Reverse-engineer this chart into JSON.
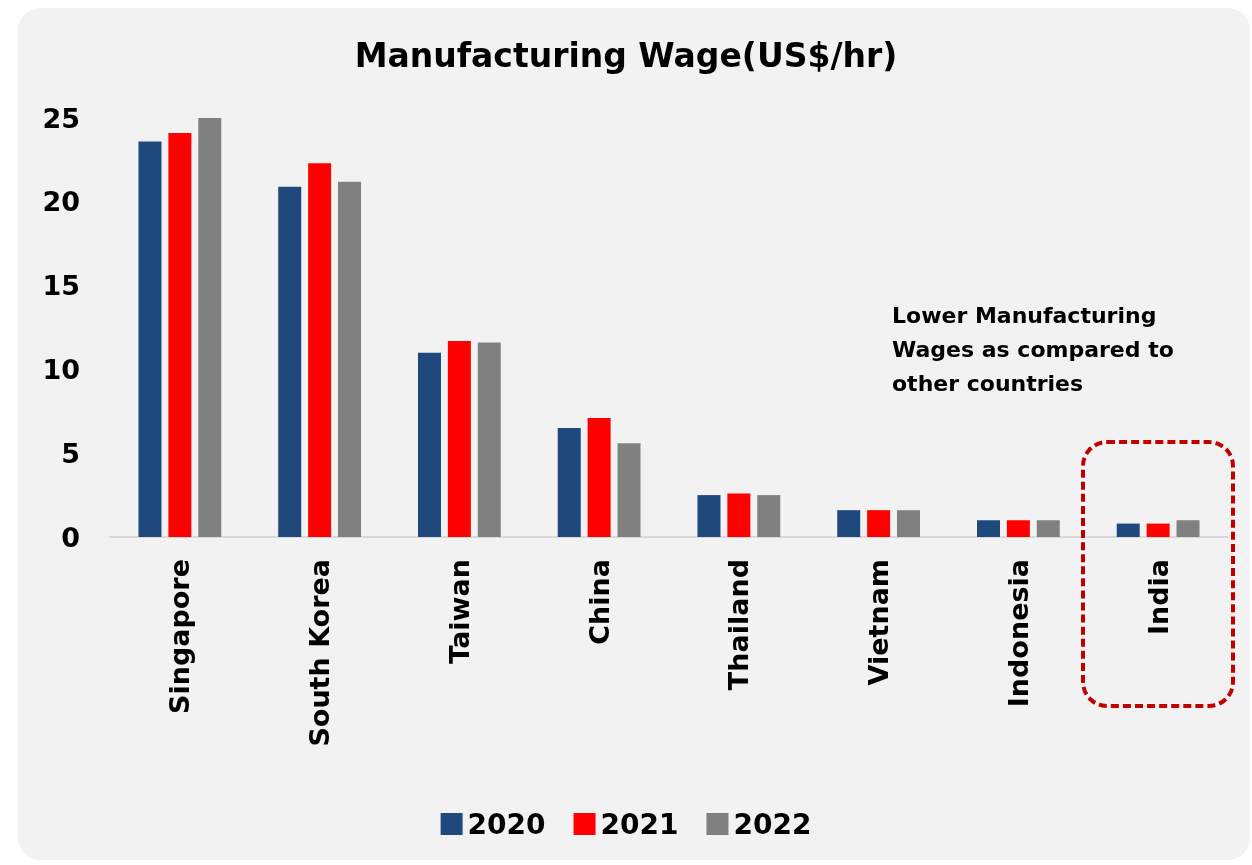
{
  "chart_data": {
    "type": "bar",
    "title": "Manufacturing Wage(US$/hr)",
    "categories": [
      "Singapore",
      "South Korea",
      "Taiwan",
      "China",
      "Thailand",
      "Vietnam",
      "Indonesia",
      "India"
    ],
    "series": [
      {
        "name": "2020",
        "color": "#1f497d",
        "values": [
          23.6,
          20.9,
          11.0,
          6.5,
          2.5,
          1.6,
          1.0,
          0.8
        ]
      },
      {
        "name": "2021",
        "color": "#ff0000",
        "values": [
          24.1,
          22.3,
          11.7,
          7.1,
          2.6,
          1.6,
          1.0,
          0.8
        ]
      },
      {
        "name": "2022",
        "color": "#808080",
        "values": [
          25.0,
          21.2,
          11.6,
          5.6,
          2.5,
          1.6,
          1.0,
          1.0
        ]
      }
    ],
    "ylim": [
      0,
      25
    ],
    "yticks": [
      0,
      5,
      10,
      15,
      20,
      25
    ],
    "grid": false,
    "legend": "bottom",
    "annotations": [
      "Lower Manufacturing Wages as compared to other countries"
    ]
  }
}
